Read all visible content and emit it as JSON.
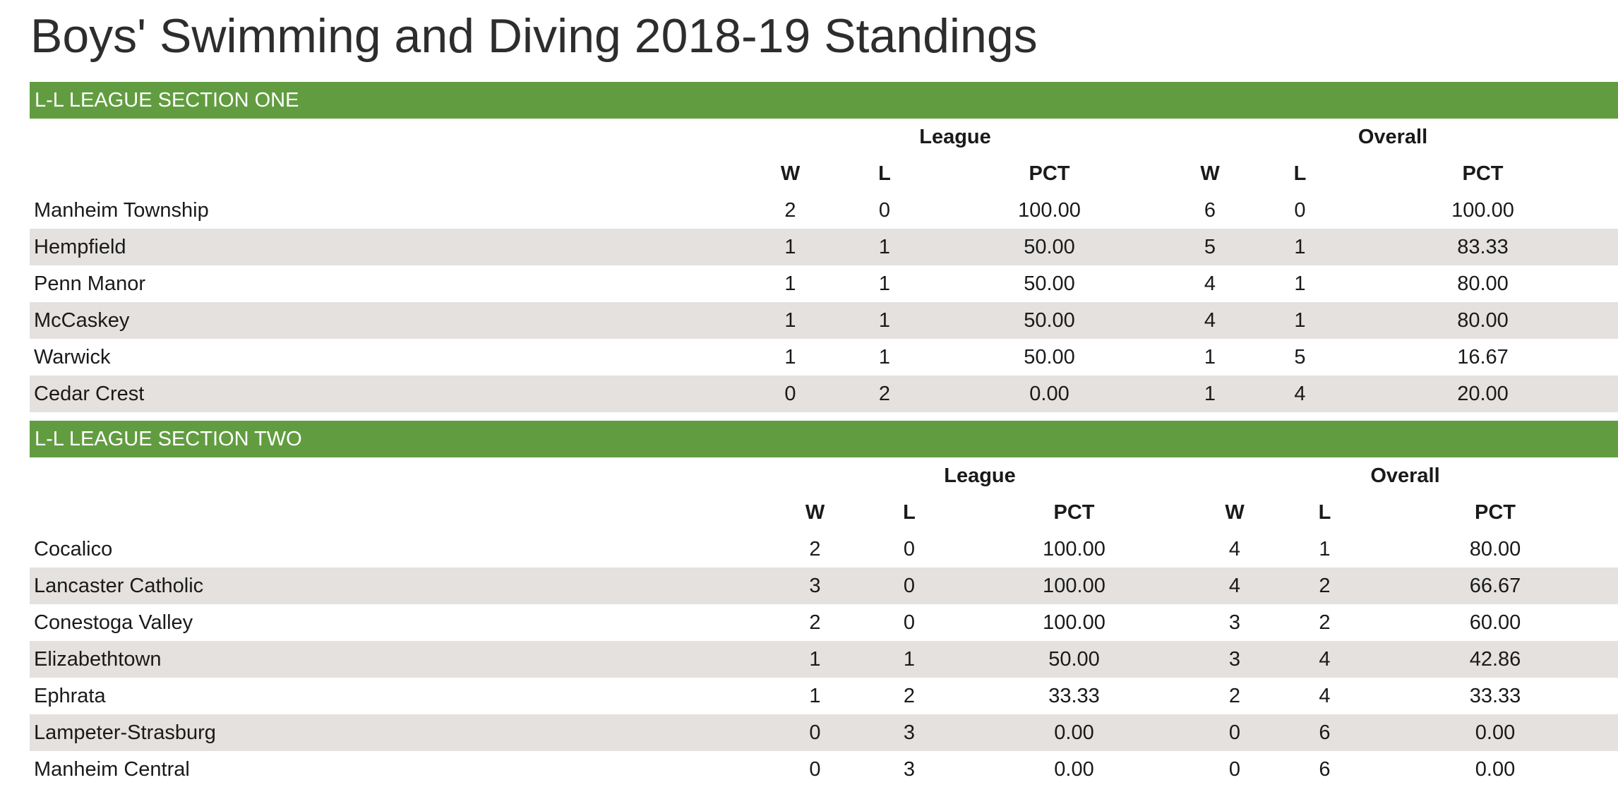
{
  "page": {
    "title": "Boys' Swimming and Diving 2018-19 Standings"
  },
  "colors": {
    "section_header_bg": "#629c40",
    "alt_row_bg": "#e4e1df"
  },
  "group_headers": {
    "league": "League",
    "overall": "Overall"
  },
  "column_headers": {
    "w": "W",
    "l": "L",
    "pct": "PCT"
  },
  "sections": [
    {
      "name": "L-L LEAGUE SECTION ONE",
      "rows": [
        {
          "team": "Manheim Township",
          "league_w": "2",
          "league_l": "0",
          "league_pct": "100.00",
          "overall_w": "6",
          "overall_l": "0",
          "overall_pct": "100.00"
        },
        {
          "team": "Hempfield",
          "league_w": "1",
          "league_l": "1",
          "league_pct": "50.00",
          "overall_w": "5",
          "overall_l": "1",
          "overall_pct": "83.33"
        },
        {
          "team": "Penn Manor",
          "league_w": "1",
          "league_l": "1",
          "league_pct": "50.00",
          "overall_w": "4",
          "overall_l": "1",
          "overall_pct": "80.00"
        },
        {
          "team": "McCaskey",
          "league_w": "1",
          "league_l": "1",
          "league_pct": "50.00",
          "overall_w": "4",
          "overall_l": "1",
          "overall_pct": "80.00"
        },
        {
          "team": "Warwick",
          "league_w": "1",
          "league_l": "1",
          "league_pct": "50.00",
          "overall_w": "1",
          "overall_l": "5",
          "overall_pct": "16.67"
        },
        {
          "team": "Cedar Crest",
          "league_w": "0",
          "league_l": "2",
          "league_pct": "0.00",
          "overall_w": "1",
          "overall_l": "4",
          "overall_pct": "20.00"
        }
      ]
    },
    {
      "name": "L-L LEAGUE SECTION TWO",
      "rows": [
        {
          "team": "Cocalico",
          "league_w": "2",
          "league_l": "0",
          "league_pct": "100.00",
          "overall_w": "4",
          "overall_l": "1",
          "overall_pct": "80.00"
        },
        {
          "team": "Lancaster Catholic",
          "league_w": "3",
          "league_l": "0",
          "league_pct": "100.00",
          "overall_w": "4",
          "overall_l": "2",
          "overall_pct": "66.67"
        },
        {
          "team": "Conestoga Valley",
          "league_w": "2",
          "league_l": "0",
          "league_pct": "100.00",
          "overall_w": "3",
          "overall_l": "2",
          "overall_pct": "60.00"
        },
        {
          "team": "Elizabethtown",
          "league_w": "1",
          "league_l": "1",
          "league_pct": "50.00",
          "overall_w": "3",
          "overall_l": "4",
          "overall_pct": "42.86"
        },
        {
          "team": "Ephrata",
          "league_w": "1",
          "league_l": "2",
          "league_pct": "33.33",
          "overall_w": "2",
          "overall_l": "4",
          "overall_pct": "33.33"
        },
        {
          "team": "Lampeter-Strasburg",
          "league_w": "0",
          "league_l": "3",
          "league_pct": "0.00",
          "overall_w": "0",
          "overall_l": "6",
          "overall_pct": "0.00"
        },
        {
          "team": "Manheim Central",
          "league_w": "0",
          "league_l": "3",
          "league_pct": "0.00",
          "overall_w": "0",
          "overall_l": "6",
          "overall_pct": "0.00"
        }
      ]
    }
  ]
}
